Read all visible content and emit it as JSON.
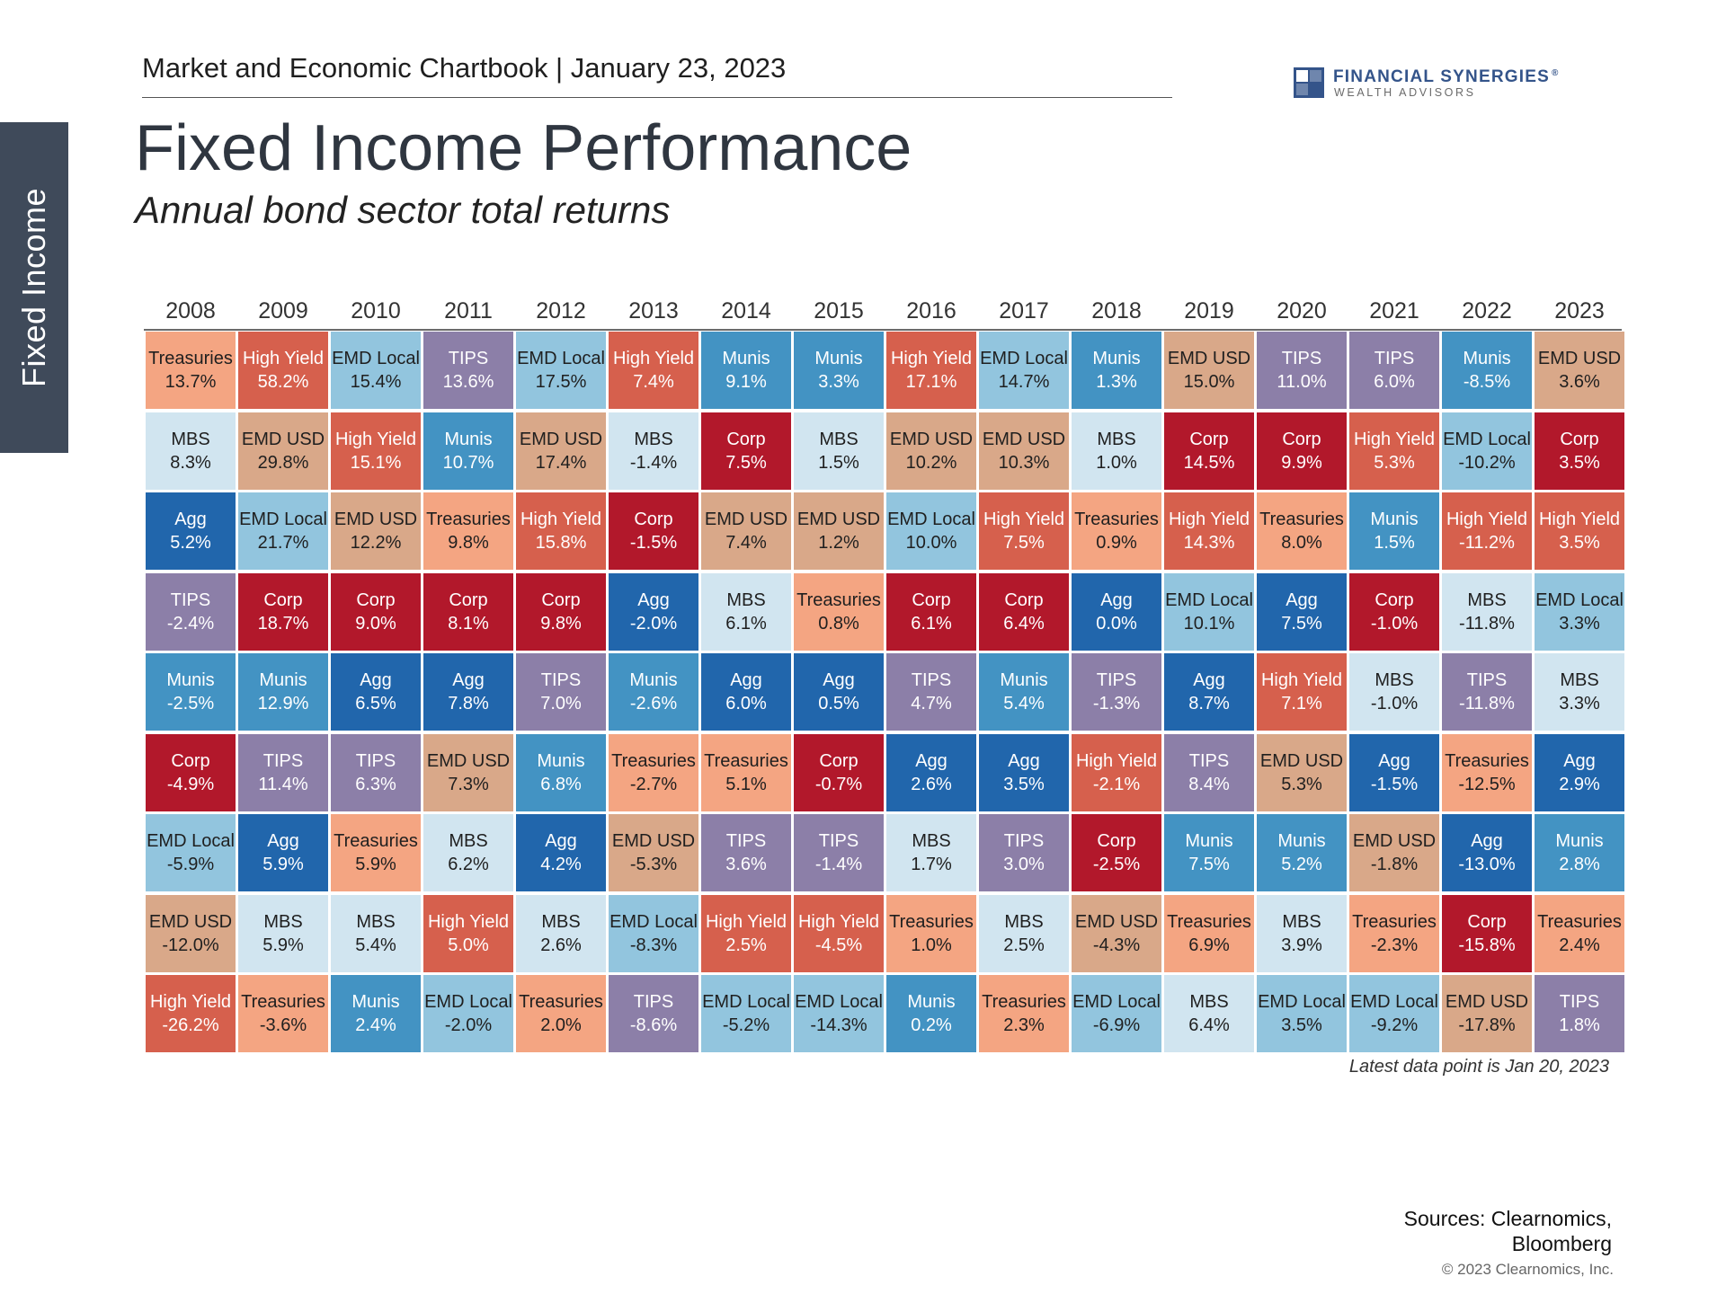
{
  "header": {
    "chartbook": "Market and Economic Chartbook | January 23, 2023",
    "logo_name": "FINANCIAL SYNERGIES",
    "logo_sub": "WEALTH ADVISORS",
    "logo_icon": "grid-square-logo"
  },
  "side_tab": {
    "label": "Fixed Income"
  },
  "note": "Latest data point is Jan 20, 2023",
  "sources": {
    "line1": "Sources: Clearnomics,",
    "line2": "Bloomberg"
  },
  "copyright": "© 2023 Clearnomics, Inc.",
  "colors": {
    "Treasuries": "#f4a582",
    "High Yield": "#d6604d",
    "EMD Local": "#92c5de",
    "TIPS": "#8c7fa8",
    "Munis": "#4393c3",
    "MBS": "#d1e5f0",
    "EMD USD": "#d9a889",
    "Corp": "#b2182b",
    "Agg": "#2166ac"
  },
  "chart_data": {
    "type": "table",
    "title": "Fixed Income Performance",
    "subtitle": "Annual bond sector total returns",
    "years": [
      "2008",
      "2009",
      "2010",
      "2011",
      "2012",
      "2013",
      "2014",
      "2015",
      "2016",
      "2017",
      "2018",
      "2019",
      "2020",
      "2021",
      "2022",
      "2023"
    ],
    "columns": [
      [
        [
          "Treasuries",
          "13.7%"
        ],
        [
          "MBS",
          "8.3%"
        ],
        [
          "Agg",
          "5.2%"
        ],
        [
          "TIPS",
          "-2.4%"
        ],
        [
          "Munis",
          "-2.5%"
        ],
        [
          "Corp",
          "-4.9%"
        ],
        [
          "EMD Local",
          "-5.9%"
        ],
        [
          "EMD USD",
          "-12.0%"
        ],
        [
          "High Yield",
          "-26.2%"
        ]
      ],
      [
        [
          "High Yield",
          "58.2%"
        ],
        [
          "EMD USD",
          "29.8%"
        ],
        [
          "EMD Local",
          "21.7%"
        ],
        [
          "Corp",
          "18.7%"
        ],
        [
          "Munis",
          "12.9%"
        ],
        [
          "TIPS",
          "11.4%"
        ],
        [
          "Agg",
          "5.9%"
        ],
        [
          "MBS",
          "5.9%"
        ],
        [
          "Treasuries",
          "-3.6%"
        ]
      ],
      [
        [
          "EMD Local",
          "15.4%"
        ],
        [
          "High Yield",
          "15.1%"
        ],
        [
          "EMD USD",
          "12.2%"
        ],
        [
          "Corp",
          "9.0%"
        ],
        [
          "Agg",
          "6.5%"
        ],
        [
          "TIPS",
          "6.3%"
        ],
        [
          "Treasuries",
          "5.9%"
        ],
        [
          "MBS",
          "5.4%"
        ],
        [
          "Munis",
          "2.4%"
        ]
      ],
      [
        [
          "TIPS",
          "13.6%"
        ],
        [
          "Munis",
          "10.7%"
        ],
        [
          "Treasuries",
          "9.8%"
        ],
        [
          "Corp",
          "8.1%"
        ],
        [
          "Agg",
          "7.8%"
        ],
        [
          "EMD USD",
          "7.3%"
        ],
        [
          "MBS",
          "6.2%"
        ],
        [
          "High Yield",
          "5.0%"
        ],
        [
          "EMD Local",
          "-2.0%"
        ]
      ],
      [
        [
          "EMD Local",
          "17.5%"
        ],
        [
          "EMD USD",
          "17.4%"
        ],
        [
          "High Yield",
          "15.8%"
        ],
        [
          "Corp",
          "9.8%"
        ],
        [
          "TIPS",
          "7.0%"
        ],
        [
          "Munis",
          "6.8%"
        ],
        [
          "Agg",
          "4.2%"
        ],
        [
          "MBS",
          "2.6%"
        ],
        [
          "Treasuries",
          "2.0%"
        ]
      ],
      [
        [
          "High Yield",
          "7.4%"
        ],
        [
          "MBS",
          "-1.4%"
        ],
        [
          "Corp",
          "-1.5%"
        ],
        [
          "Agg",
          "-2.0%"
        ],
        [
          "Munis",
          "-2.6%"
        ],
        [
          "Treasuries",
          "-2.7%"
        ],
        [
          "EMD USD",
          "-5.3%"
        ],
        [
          "EMD Local",
          "-8.3%"
        ],
        [
          "TIPS",
          "-8.6%"
        ]
      ],
      [
        [
          "Munis",
          "9.1%"
        ],
        [
          "Corp",
          "7.5%"
        ],
        [
          "EMD USD",
          "7.4%"
        ],
        [
          "MBS",
          "6.1%"
        ],
        [
          "Agg",
          "6.0%"
        ],
        [
          "Treasuries",
          "5.1%"
        ],
        [
          "TIPS",
          "3.6%"
        ],
        [
          "High Yield",
          "2.5%"
        ],
        [
          "EMD Local",
          "-5.2%"
        ]
      ],
      [
        [
          "Munis",
          "3.3%"
        ],
        [
          "MBS",
          "1.5%"
        ],
        [
          "EMD USD",
          "1.2%"
        ],
        [
          "Treasuries",
          "0.8%"
        ],
        [
          "Agg",
          "0.5%"
        ],
        [
          "Corp",
          "-0.7%"
        ],
        [
          "TIPS",
          "-1.4%"
        ],
        [
          "High Yield",
          "-4.5%"
        ],
        [
          "EMD Local",
          "-14.3%"
        ]
      ],
      [
        [
          "High Yield",
          "17.1%"
        ],
        [
          "EMD USD",
          "10.2%"
        ],
        [
          "EMD Local",
          "10.0%"
        ],
        [
          "Corp",
          "6.1%"
        ],
        [
          "TIPS",
          "4.7%"
        ],
        [
          "Agg",
          "2.6%"
        ],
        [
          "MBS",
          "1.7%"
        ],
        [
          "Treasuries",
          "1.0%"
        ],
        [
          "Munis",
          "0.2%"
        ]
      ],
      [
        [
          "EMD Local",
          "14.7%"
        ],
        [
          "EMD USD",
          "10.3%"
        ],
        [
          "High Yield",
          "7.5%"
        ],
        [
          "Corp",
          "6.4%"
        ],
        [
          "Munis",
          "5.4%"
        ],
        [
          "Agg",
          "3.5%"
        ],
        [
          "TIPS",
          "3.0%"
        ],
        [
          "MBS",
          "2.5%"
        ],
        [
          "Treasuries",
          "2.3%"
        ]
      ],
      [
        [
          "Munis",
          "1.3%"
        ],
        [
          "MBS",
          "1.0%"
        ],
        [
          "Treasuries",
          "0.9%"
        ],
        [
          "Agg",
          "0.0%"
        ],
        [
          "TIPS",
          "-1.3%"
        ],
        [
          "High Yield",
          "-2.1%"
        ],
        [
          "Corp",
          "-2.5%"
        ],
        [
          "EMD USD",
          "-4.3%"
        ],
        [
          "EMD Local",
          "-6.9%"
        ]
      ],
      [
        [
          "EMD USD",
          "15.0%"
        ],
        [
          "Corp",
          "14.5%"
        ],
        [
          "High Yield",
          "14.3%"
        ],
        [
          "EMD Local",
          "10.1%"
        ],
        [
          "Agg",
          "8.7%"
        ],
        [
          "TIPS",
          "8.4%"
        ],
        [
          "Munis",
          "7.5%"
        ],
        [
          "Treasuries",
          "6.9%"
        ],
        [
          "MBS",
          "6.4%"
        ]
      ],
      [
        [
          "TIPS",
          "11.0%"
        ],
        [
          "Corp",
          "9.9%"
        ],
        [
          "Treasuries",
          "8.0%"
        ],
        [
          "Agg",
          "7.5%"
        ],
        [
          "High Yield",
          "7.1%"
        ],
        [
          "EMD USD",
          "5.3%"
        ],
        [
          "Munis",
          "5.2%"
        ],
        [
          "MBS",
          "3.9%"
        ],
        [
          "EMD Local",
          "3.5%"
        ]
      ],
      [
        [
          "TIPS",
          "6.0%"
        ],
        [
          "High Yield",
          "5.3%"
        ],
        [
          "Munis",
          "1.5%"
        ],
        [
          "Corp",
          "-1.0%"
        ],
        [
          "MBS",
          "-1.0%"
        ],
        [
          "Agg",
          "-1.5%"
        ],
        [
          "EMD USD",
          "-1.8%"
        ],
        [
          "Treasuries",
          "-2.3%"
        ],
        [
          "EMD Local",
          "-9.2%"
        ]
      ],
      [
        [
          "Munis",
          "-8.5%"
        ],
        [
          "EMD Local",
          "-10.2%"
        ],
        [
          "High Yield",
          "-11.2%"
        ],
        [
          "MBS",
          "-11.8%"
        ],
        [
          "TIPS",
          "-11.8%"
        ],
        [
          "Treasuries",
          "-12.5%"
        ],
        [
          "Agg",
          "-13.0%"
        ],
        [
          "Corp",
          "-15.8%"
        ],
        [
          "EMD USD",
          "-17.8%"
        ]
      ],
      [
        [
          "EMD USD",
          "3.6%"
        ],
        [
          "Corp",
          "3.5%"
        ],
        [
          "High Yield",
          "3.5%"
        ],
        [
          "EMD Local",
          "3.3%"
        ],
        [
          "MBS",
          "3.3%"
        ],
        [
          "Agg",
          "2.9%"
        ],
        [
          "Munis",
          "2.8%"
        ],
        [
          "Treasuries",
          "2.4%"
        ],
        [
          "TIPS",
          "1.8%"
        ]
      ]
    ]
  }
}
